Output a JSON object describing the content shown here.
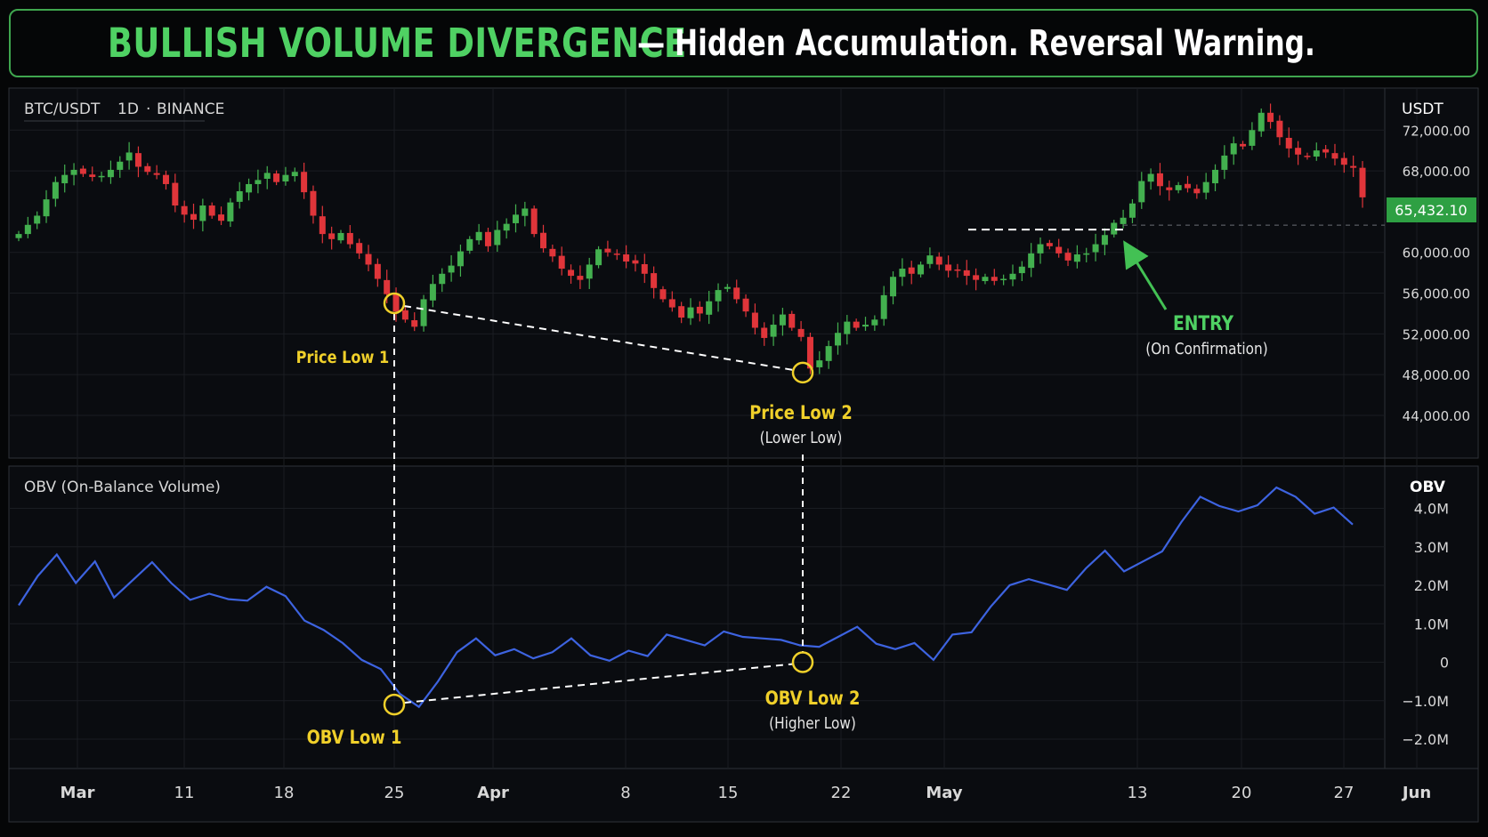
{
  "header": {
    "title_main": "BULLISH VOLUME DIVERGENCE",
    "title_rest": "— Hidden Accumulation. Reversal Warning."
  },
  "colors": {
    "bull": "#43b04f",
    "bear": "#e0353a",
    "obv_line": "#3d63e0",
    "annotation": "#f0d02a",
    "accent_green": "#4fd163",
    "price_tag_bg": "#2ea043",
    "grid": "#1a1d22",
    "border": "#2e3238"
  },
  "price_panel": {
    "symbol": "BTC/USDT",
    "interval": "1D",
    "exchange": "BINANCE",
    "currency": "USDT",
    "ticks": [
      "72,000.00",
      "68,000.00",
      "60,000.00",
      "56,000.00",
      "52,000.00",
      "48,000.00",
      "44,000.00"
    ],
    "last_price": "65,432.10"
  },
  "obv_panel": {
    "title": "OBV (On-Balance Volume)",
    "axis_title": "OBV",
    "ticks": [
      "4.0M",
      "3.0M",
      "2.0M",
      "1.0M",
      "0",
      "−1.0M",
      "−2.0M"
    ]
  },
  "x_axis": {
    "labels": [
      "Mar",
      "11",
      "18",
      "25",
      "Apr",
      "8",
      "15",
      "22",
      "May",
      "13",
      "20",
      "27",
      "Jun"
    ]
  },
  "annotations": {
    "price_low_1": "Price Low 1",
    "price_low_2": "Price Low 2",
    "price_low_2_sub": "(Lower Low)",
    "obv_low_1": "OBV Low 1",
    "obv_low_2": "OBV Low 2",
    "obv_low_2_sub": "(Higher Low)",
    "entry": "ENTRY",
    "entry_sub": "(On Confirmation)"
  },
  "chart_data": {
    "type": "candlestick",
    "date_range": [
      "Feb 26",
      "May 28"
    ],
    "price_close": [
      61800,
      62700,
      63600,
      65200,
      66900,
      67600,
      68100,
      67700,
      67400,
      67500,
      68100,
      68900,
      69800,
      68400,
      67900,
      67600,
      66700,
      64600,
      63700,
      63200,
      64600,
      63600,
      63100,
      64900,
      66000,
      66700,
      67100,
      67800,
      66900,
      67600,
      67900,
      65900,
      63600,
      61800,
      61300,
      61900,
      60800,
      59900,
      58800,
      57400,
      55900,
      54200,
      53400,
      52700,
      55400,
      56900,
      57900,
      58700,
      60100,
      61300,
      62000,
      60600,
      62200,
      62800,
      63700,
      64300,
      61800,
      60400,
      59600,
      58400,
      57700,
      57300,
      58800,
      60300,
      60000,
      59800,
      59100,
      58900,
      57900,
      56500,
      55400,
      54600,
      53600,
      54600,
      54000,
      55200,
      56300,
      56600,
      55400,
      54200,
      52600,
      51600,
      52900,
      53900,
      52600,
      51700,
      48600,
      49400,
      50800,
      52100,
      53200,
      52600,
      52900,
      53400,
      55800,
      57600,
      58400,
      57900,
      58800,
      59700,
      58800,
      58200,
      58300,
      57700,
      57300,
      57600,
      57200,
      57400,
      57900,
      58600,
      59900,
      60800,
      60600,
      59900,
      59200,
      59800,
      59900,
      60800,
      61700,
      62900,
      63400,
      64800,
      67000,
      67700,
      66500,
      66100,
      66600,
      66300,
      65800,
      66900,
      68100,
      69500,
      70700,
      70400,
      72000,
      73700,
      72800,
      71300,
      70200,
      69600,
      69400,
      70000,
      69800,
      69200,
      68600,
      68300,
      65400
    ],
    "obv_millions": [
      1.6,
      2.3,
      2.8,
      2.0,
      2.5,
      1.8,
      2.2,
      2.6,
      2.0,
      1.5,
      1.9,
      1.7,
      1.6,
      1.9,
      1.6,
      1.2,
      0.9,
      0.5,
      0.0,
      -0.3,
      -0.7,
      -1.1,
      -0.5,
      0.2,
      0.5,
      0.3,
      0.4,
      0.1,
      0.2,
      0.5,
      0.3,
      0.1,
      0.3,
      0.1,
      0.6,
      0.7,
      0.5,
      0.8,
      0.6,
      0.5,
      0.7,
      0.5,
      0.4,
      0.6,
      0.8,
      0.6,
      0.4,
      0.5,
      0.0,
      0.6,
      0.9,
      1.5,
      2.0,
      2.1,
      1.9,
      2.0,
      2.5,
      2.9,
      2.3,
      2.5,
      3.0,
      3.7,
      4.3,
      4.0,
      3.8,
      4.2,
      4.6,
      4.3,
      3.8,
      3.9,
      3.7
    ],
    "divergence_price_lows": [
      55000,
      48200
    ],
    "divergence_obv_lows": [
      -1.1,
      0.0
    ],
    "entry_level": 62500
  }
}
